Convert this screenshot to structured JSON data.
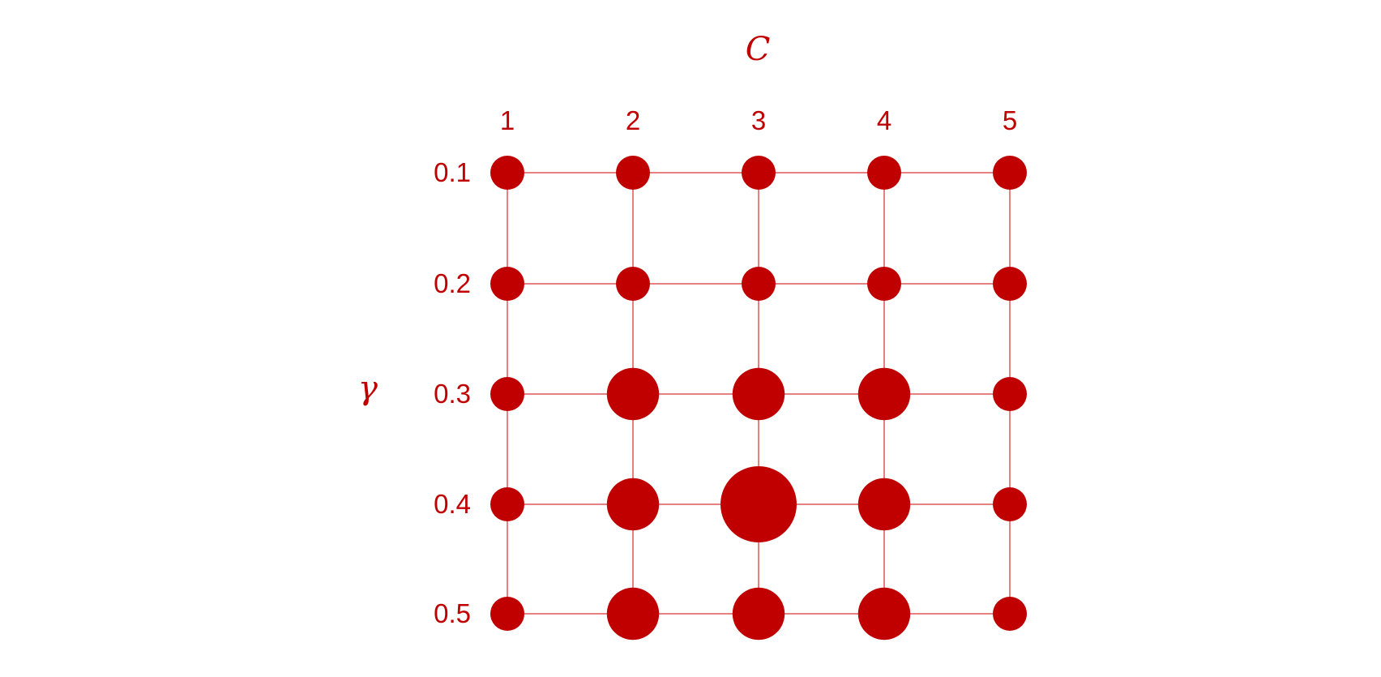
{
  "colors": {
    "primary": "#C00000",
    "line": "#E88080",
    "background": "#FFFFFF"
  },
  "axes": {
    "x_title": "C",
    "y_title": "γ"
  },
  "chart_data": {
    "type": "grid-bubble",
    "x_label": "C",
    "y_label": "γ",
    "x_ticks": [
      "1",
      "2",
      "3",
      "4",
      "5"
    ],
    "y_ticks": [
      "0.1",
      "0.2",
      "0.3",
      "0.4",
      "0.5"
    ],
    "relative_size": [
      [
        1,
        1,
        1,
        1,
        1
      ],
      [
        1,
        1,
        1,
        1,
        1
      ],
      [
        1,
        2,
        2,
        2,
        1
      ],
      [
        1,
        2,
        4,
        2,
        1
      ],
      [
        1,
        2,
        2,
        2,
        1
      ]
    ]
  }
}
